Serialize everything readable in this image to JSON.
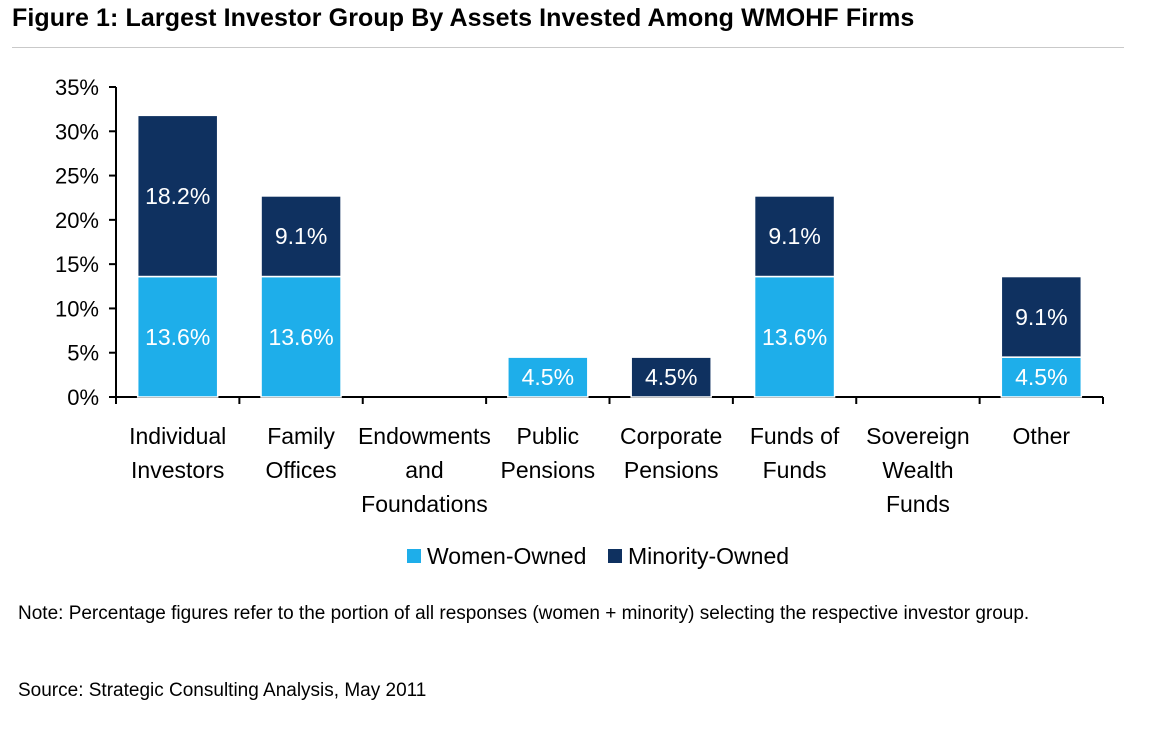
{
  "title": "Figure 1: Largest Investor Group By Assets Invested Among WMOHF Firms",
  "note": "Note: Percentage figures refer to the portion of all responses (women + minority) selecting the respective investor group.",
  "source": "Source: Strategic Consulting Analysis, May 2011",
  "colors": {
    "women": "#1eaeea",
    "minority": "#0f3160"
  },
  "chart_data": {
    "type": "bar",
    "stacked": true,
    "categories": [
      [
        "Individual",
        "Investors"
      ],
      [
        "Family",
        "Offices"
      ],
      [
        "Endowments",
        "and",
        "Foundations"
      ],
      [
        "Public",
        "Pensions"
      ],
      [
        "Corporate",
        "Pensions"
      ],
      [
        "Funds of",
        "Funds"
      ],
      [
        "Sovereign",
        "Wealth",
        "Funds"
      ],
      [
        "Other"
      ]
    ],
    "series": [
      {
        "name": "Women-Owned",
        "values": [
          13.6,
          13.6,
          0,
          4.5,
          0,
          13.6,
          0,
          4.5
        ],
        "labels": [
          "13.6%",
          "13.6%",
          "",
          "4.5%",
          "",
          "13.6%",
          "",
          "4.5%"
        ]
      },
      {
        "name": "Minority-Owned",
        "values": [
          18.2,
          9.1,
          0,
          0,
          4.5,
          9.1,
          0,
          9.1
        ],
        "labels": [
          "18.2%",
          "9.1%",
          "",
          "",
          "4.5%",
          "9.1%",
          "",
          "9.1%"
        ]
      }
    ],
    "yticks": [
      "0%",
      "5%",
      "10%",
      "15%",
      "20%",
      "25%",
      "30%",
      "35%"
    ],
    "ylim": [
      0,
      35
    ],
    "xlabel": "",
    "ylabel": "",
    "legend": "bottom-center",
    "grid": false
  }
}
